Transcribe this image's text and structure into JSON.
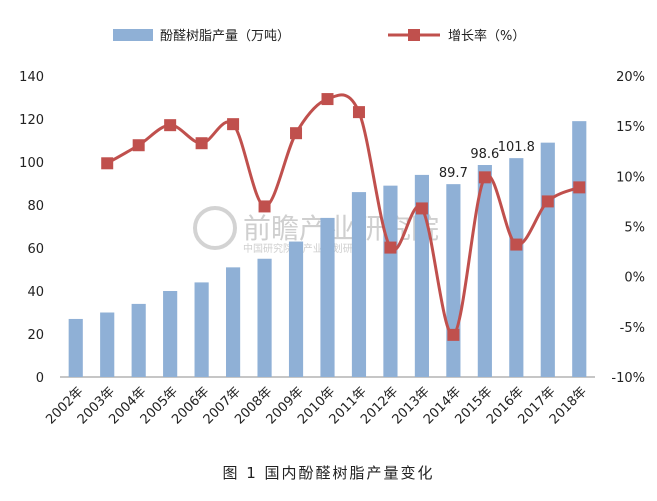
{
  "chart_data": {
    "type": "bar",
    "categories": [
      "2002年",
      "2003年",
      "2004年",
      "2005年",
      "2006年",
      "2007年",
      "2008年",
      "2009年",
      "2010年",
      "2011年",
      "2012年",
      "2013年",
      "2014年",
      "2015年",
      "2016年",
      "2017年",
      "2018年"
    ],
    "series": [
      {
        "name": "酚醛树脂产量（万吨）",
        "type": "bar",
        "axis": "left",
        "values": [
          27,
          30,
          34,
          40,
          44,
          51,
          55,
          63,
          74,
          86,
          89,
          94,
          89.7,
          98.6,
          101.8,
          109,
          119
        ]
      },
      {
        "name": "增长率（%）",
        "type": "line",
        "axis": "right",
        "values": [
          null,
          11.3,
          13.1,
          15.1,
          13.3,
          15.2,
          7.0,
          14.3,
          17.7,
          16.4,
          2.9,
          6.8,
          -5.8,
          9.9,
          3.2,
          7.5,
          8.9
        ]
      }
    ],
    "data_labels": [
      {
        "category": "2014年",
        "text": "89.7"
      },
      {
        "category": "2015年",
        "text": "98.6"
      },
      {
        "category": "2016年",
        "text": "101.8"
      }
    ],
    "y_left": {
      "ticks": [
        "0",
        "20",
        "40",
        "60",
        "80",
        "100",
        "120",
        "140"
      ],
      "min": 0,
      "max": 140
    },
    "y_right": {
      "ticks": [
        "-10%",
        "-5%",
        "0%",
        "5%",
        "10%",
        "15%",
        "20%"
      ],
      "min": -10,
      "max": 20
    },
    "grid": false,
    "legend_position": "top",
    "colors": {
      "bar": "#8fb0d6",
      "line": "#c0504d",
      "marker": "#c0504d"
    }
  },
  "caption": "图 1  国内酚醛树脂产量变化",
  "watermark": {
    "main": "前瞻产业研究院",
    "sub": "中国研究院 | 产业规划研究"
  }
}
